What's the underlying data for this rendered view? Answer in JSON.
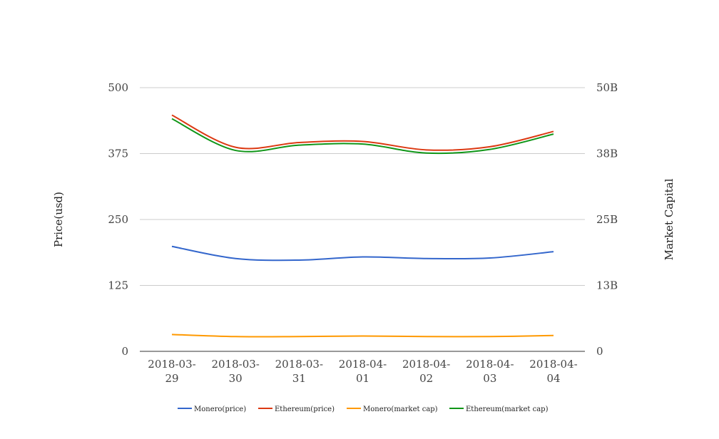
{
  "chart_data": {
    "type": "line",
    "x": [
      "2018-03-29",
      "2018-03-30",
      "2018-03-31",
      "2018-04-01",
      "2018-04-02",
      "2018-04-03",
      "2018-04-04"
    ],
    "x_tick_labels": [
      [
        "2018-03-",
        "29"
      ],
      [
        "2018-03-",
        "30"
      ],
      [
        "2018-03-",
        "31"
      ],
      [
        "2018-04-",
        "01"
      ],
      [
        "2018-04-",
        "02"
      ],
      [
        "2018-04-",
        "03"
      ],
      [
        "2018-04-",
        "04"
      ]
    ],
    "ylabel": "Price(usd)",
    "y2label": "Market Capital",
    "ylim": [
      0,
      500
    ],
    "y2lim": [
      0,
      50000000000
    ],
    "y_ticks": [
      "0",
      "125",
      "250",
      "375",
      "500"
    ],
    "y2_ticks": [
      "0",
      "13B",
      "25B",
      "38B",
      "50B"
    ],
    "grid": true,
    "legend_position": "bottom",
    "series": [
      {
        "name": "Monero(price)",
        "axis": "left",
        "color": "#3366cc",
        "values": [
          199,
          176,
          173,
          179,
          176,
          177,
          189
        ]
      },
      {
        "name": "Ethereum(price)",
        "axis": "right",
        "color": "#dc3912",
        "values": [
          44800000000,
          38700000000,
          39600000000,
          39800000000,
          38200000000,
          38800000000,
          41700000000
        ]
      },
      {
        "name": "Monero(market cap)",
        "axis": "left",
        "color": "#ff9900",
        "values": [
          32,
          28,
          28,
          29,
          28,
          28,
          30
        ]
      },
      {
        "name": "Ethereum(market cap)",
        "axis": "right",
        "color": "#109618",
        "values": [
          44100000000,
          38100000000,
          39100000000,
          39300000000,
          37600000000,
          38300000000,
          41200000000
        ]
      }
    ]
  }
}
